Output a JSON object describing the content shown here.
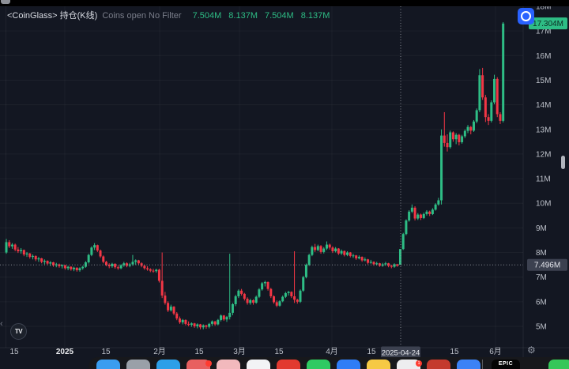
{
  "legend": {
    "symbol": "<CoinGlass> 持仓(K线)",
    "description": "Coins open No Filter",
    "ohlc": [
      "7.504M",
      "8.137M",
      "7.504M",
      "8.137M"
    ]
  },
  "tv_logo_text": "TV",
  "icons": {
    "collapse_chevron": "‹",
    "gear": "⚙"
  },
  "toolbar": {
    "refresh_color": "#2962ff"
  },
  "chart_data": {
    "type": "candlestick",
    "title": "<CoinGlass> 持仓(K线) Coins open No Filter",
    "unit": "M coins",
    "ylim": [
      4.6,
      18.3
    ],
    "up_color": "#2ebd85",
    "down_color": "#f23645",
    "grid": "faint",
    "y_ticks": [
      {
        "value": 18,
        "label": "18M"
      },
      {
        "value": 17,
        "label": "17M"
      },
      {
        "value": 16,
        "label": "16M"
      },
      {
        "value": 15,
        "label": "15M"
      },
      {
        "value": 14,
        "label": "14M"
      },
      {
        "value": 13,
        "label": "13M"
      },
      {
        "value": 12,
        "label": "12M"
      },
      {
        "value": 11,
        "label": "11M"
      },
      {
        "value": 10,
        "label": "10M"
      },
      {
        "value": 9,
        "label": "9M"
      },
      {
        "value": 8,
        "label": "8M"
      },
      {
        "value": 7,
        "label": "7M"
      },
      {
        "value": 6,
        "label": "6M"
      },
      {
        "value": 5,
        "label": "5M"
      }
    ],
    "x_ticks": [
      {
        "x": 18,
        "label": "15"
      },
      {
        "x": 82,
        "label": "2025",
        "bold": true,
        "grid": true
      },
      {
        "x": 134,
        "label": "15"
      },
      {
        "x": 202,
        "label": "2月",
        "grid": true
      },
      {
        "x": 252,
        "label": "15"
      },
      {
        "x": 303,
        "label": "3月",
        "grid": true
      },
      {
        "x": 353,
        "label": "15"
      },
      {
        "x": 420,
        "label": "4月",
        "grid": true
      },
      {
        "x": 470,
        "label": "15"
      },
      {
        "x": 575,
        "label": "15"
      },
      {
        "x": 627,
        "label": "6月",
        "grid": true
      }
    ],
    "last_price": {
      "value": 17.304,
      "label": "17.304M"
    },
    "crosshair": {
      "x": 507,
      "price": 7.496,
      "price_label": "7.496M",
      "date_label": "2025-04-24"
    },
    "candles": [
      [
        8.0,
        8.55,
        7.95,
        8.42
      ],
      [
        8.42,
        8.5,
        8.18,
        8.25
      ],
      [
        8.25,
        8.38,
        8.15,
        8.32
      ],
      [
        8.32,
        8.36,
        8.05,
        8.12
      ],
      [
        8.12,
        8.22,
        7.98,
        8.05
      ],
      [
        8.05,
        8.18,
        7.95,
        8.1
      ],
      [
        8.1,
        8.12,
        7.85,
        7.92
      ],
      [
        7.92,
        8.02,
        7.82,
        7.96
      ],
      [
        7.96,
        7.98,
        7.75,
        7.82
      ],
      [
        7.82,
        7.92,
        7.72,
        7.86
      ],
      [
        7.86,
        7.88,
        7.65,
        7.72
      ],
      [
        7.72,
        7.82,
        7.62,
        7.76
      ],
      [
        7.76,
        7.78,
        7.56,
        7.62
      ],
      [
        7.62,
        7.72,
        7.52,
        7.66
      ],
      [
        7.66,
        7.68,
        7.48,
        7.55
      ],
      [
        7.55,
        7.65,
        7.45,
        7.6
      ],
      [
        7.6,
        7.62,
        7.42,
        7.48
      ],
      [
        7.48,
        7.58,
        7.4,
        7.52
      ],
      [
        7.52,
        7.55,
        7.38,
        7.44
      ],
      [
        7.44,
        7.52,
        7.35,
        7.48
      ],
      [
        7.48,
        7.5,
        7.3,
        7.36
      ],
      [
        7.36,
        7.46,
        7.28,
        7.42
      ],
      [
        7.42,
        7.44,
        7.26,
        7.32
      ],
      [
        7.32,
        7.42,
        7.24,
        7.38
      ],
      [
        7.38,
        7.4,
        7.22,
        7.28
      ],
      [
        7.28,
        7.4,
        7.22,
        7.36
      ],
      [
        7.36,
        7.46,
        7.3,
        7.42
      ],
      [
        7.42,
        7.65,
        7.38,
        7.6
      ],
      [
        7.6,
        7.95,
        7.55,
        7.9
      ],
      [
        7.9,
        8.25,
        7.85,
        8.2
      ],
      [
        8.2,
        8.38,
        8.1,
        8.3
      ],
      [
        8.3,
        8.32,
        8.02,
        8.08
      ],
      [
        8.08,
        8.12,
        7.78,
        7.84
      ],
      [
        7.84,
        7.88,
        7.56,
        7.62
      ],
      [
        7.62,
        7.66,
        7.44,
        7.5
      ],
      [
        7.5,
        7.56,
        7.36,
        7.44
      ],
      [
        7.44,
        7.58,
        7.38,
        7.54
      ],
      [
        7.54,
        7.56,
        7.34,
        7.4
      ],
      [
        7.4,
        7.48,
        7.3,
        7.36
      ],
      [
        7.36,
        7.52,
        7.32,
        7.48
      ],
      [
        7.48,
        7.62,
        7.42,
        7.56
      ],
      [
        7.56,
        7.6,
        7.4,
        7.46
      ],
      [
        7.46,
        7.58,
        7.4,
        7.52
      ],
      [
        7.52,
        7.9,
        7.46,
        7.62
      ],
      [
        7.62,
        7.72,
        7.5,
        7.68
      ],
      [
        7.68,
        7.7,
        7.5,
        7.56
      ],
      [
        7.56,
        7.6,
        7.4,
        7.46
      ],
      [
        7.46,
        7.5,
        7.3,
        7.36
      ],
      [
        7.36,
        7.44,
        7.26,
        7.32
      ],
      [
        7.32,
        7.36,
        7.2,
        7.26
      ],
      [
        7.26,
        7.34,
        7.18,
        7.24
      ],
      [
        7.24,
        7.34,
        7.18,
        7.3
      ],
      [
        7.3,
        7.34,
        6.78,
        6.85
      ],
      [
        6.85,
        8.0,
        6.15,
        6.25
      ],
      [
        6.25,
        6.4,
        5.88,
        5.95
      ],
      [
        5.95,
        6.02,
        5.58,
        5.65
      ],
      [
        5.65,
        5.88,
        5.6,
        5.8
      ],
      [
        5.8,
        5.82,
        5.45,
        5.52
      ],
      [
        5.52,
        5.58,
        5.25,
        5.32
      ],
      [
        5.32,
        5.4,
        5.1,
        5.16
      ],
      [
        5.16,
        5.3,
        5.08,
        5.26
      ],
      [
        5.26,
        5.28,
        5.04,
        5.1
      ],
      [
        5.1,
        5.2,
        5.0,
        5.06
      ],
      [
        5.06,
        5.16,
        4.98,
        5.12
      ],
      [
        5.12,
        5.14,
        4.94,
        5.0
      ],
      [
        5.0,
        5.12,
        4.92,
        5.08
      ],
      [
        5.08,
        5.1,
        4.88,
        4.96
      ],
      [
        4.96,
        5.08,
        4.88,
        5.04
      ],
      [
        5.04,
        5.06,
        4.9,
        4.98
      ],
      [
        4.98,
        5.14,
        4.92,
        5.1
      ],
      [
        5.1,
        5.24,
        5.02,
        5.2
      ],
      [
        5.2,
        5.22,
        5.02,
        5.08
      ],
      [
        5.08,
        5.3,
        5.04,
        5.26
      ],
      [
        5.26,
        5.48,
        5.2,
        5.44
      ],
      [
        5.44,
        5.46,
        5.22,
        5.28
      ],
      [
        5.28,
        5.42,
        5.18,
        5.38
      ],
      [
        5.38,
        7.95,
        5.28,
        5.55
      ],
      [
        5.55,
        5.95,
        5.45,
        5.9
      ],
      [
        5.9,
        6.28,
        5.82,
        6.22
      ],
      [
        6.22,
        6.5,
        6.15,
        6.45
      ],
      [
        6.45,
        6.52,
        6.25,
        6.32
      ],
      [
        6.32,
        6.36,
        6.05,
        6.12
      ],
      [
        6.12,
        6.18,
        5.88,
        5.95
      ],
      [
        5.95,
        6.12,
        5.88,
        6.06
      ],
      [
        6.06,
        6.1,
        5.88,
        5.96
      ],
      [
        5.96,
        6.25,
        5.92,
        6.2
      ],
      [
        6.2,
        6.55,
        6.15,
        6.5
      ],
      [
        6.5,
        6.8,
        6.45,
        6.75
      ],
      [
        6.75,
        6.85,
        6.62,
        6.8
      ],
      [
        6.8,
        6.82,
        6.45,
        6.52
      ],
      [
        6.52,
        6.56,
        6.15,
        6.22
      ],
      [
        6.22,
        6.26,
        5.92,
        5.98
      ],
      [
        5.98,
        6.05,
        5.78,
        5.84
      ],
      [
        5.84,
        6.06,
        5.8,
        6.02
      ],
      [
        6.02,
        6.25,
        5.98,
        6.2
      ],
      [
        6.2,
        6.4,
        6.15,
        6.35
      ],
      [
        6.35,
        6.44,
        6.25,
        6.4
      ],
      [
        6.4,
        6.42,
        6.15,
        6.22
      ],
      [
        6.22,
        8.05,
        5.95,
        6.08
      ],
      [
        6.08,
        6.12,
        5.92,
        6.0
      ],
      [
        6.0,
        6.5,
        5.95,
        6.45
      ],
      [
        6.45,
        7.05,
        6.4,
        7.0
      ],
      [
        7.0,
        7.55,
        6.95,
        7.5
      ],
      [
        7.5,
        7.95,
        7.45,
        7.9
      ],
      [
        7.9,
        8.28,
        7.85,
        8.22
      ],
      [
        8.22,
        8.35,
        8.02,
        8.1
      ],
      [
        8.1,
        8.32,
        8.05,
        8.26
      ],
      [
        8.26,
        8.3,
        7.95,
        8.02
      ],
      [
        8.02,
        8.22,
        7.96,
        8.16
      ],
      [
        8.16,
        8.45,
        8.1,
        8.32
      ],
      [
        8.32,
        8.36,
        8.12,
        8.2
      ],
      [
        8.2,
        8.25,
        7.98,
        8.05
      ],
      [
        8.05,
        8.22,
        8.0,
        8.16
      ],
      [
        8.16,
        8.18,
        7.9,
        7.96
      ],
      [
        7.96,
        8.12,
        7.9,
        8.06
      ],
      [
        8.06,
        8.08,
        7.84,
        7.9
      ],
      [
        7.9,
        8.05,
        7.85,
        8.0
      ],
      [
        8.0,
        8.02,
        7.8,
        7.86
      ],
      [
        7.86,
        7.95,
        7.78,
        7.88
      ],
      [
        7.88,
        7.9,
        7.7,
        7.76
      ],
      [
        7.76,
        7.88,
        7.72,
        7.82
      ],
      [
        7.82,
        7.84,
        7.62,
        7.68
      ],
      [
        7.68,
        7.8,
        7.64,
        7.72
      ],
      [
        7.72,
        7.74,
        7.52,
        7.58
      ],
      [
        7.58,
        7.7,
        7.54,
        7.62
      ],
      [
        7.62,
        7.64,
        7.46,
        7.52
      ],
      [
        7.52,
        7.62,
        7.48,
        7.56
      ],
      [
        7.56,
        7.58,
        7.42,
        7.46
      ],
      [
        7.46,
        7.58,
        7.42,
        7.52
      ],
      [
        7.52,
        7.62,
        7.46,
        7.56
      ],
      [
        7.56,
        7.58,
        7.4,
        7.46
      ],
      [
        7.46,
        7.5,
        7.36,
        7.42
      ],
      [
        7.42,
        7.56,
        7.38,
        7.52
      ],
      [
        7.52,
        7.54,
        7.42,
        7.46
      ],
      [
        7.5,
        8.14,
        7.5,
        8.14
      ],
      [
        8.14,
        8.8,
        8.1,
        8.75
      ],
      [
        8.75,
        9.35,
        8.7,
        9.3
      ],
      [
        9.3,
        9.72,
        9.25,
        9.66
      ],
      [
        9.66,
        9.95,
        9.6,
        9.82
      ],
      [
        9.82,
        9.88,
        9.3,
        9.38
      ],
      [
        9.38,
        9.6,
        9.32,
        9.54
      ],
      [
        9.54,
        9.58,
        9.32,
        9.4
      ],
      [
        9.4,
        9.62,
        9.36,
        9.56
      ],
      [
        9.56,
        9.72,
        9.5,
        9.66
      ],
      [
        9.66,
        9.7,
        9.48,
        9.56
      ],
      [
        9.56,
        9.8,
        9.52,
        9.74
      ],
      [
        9.74,
        10.0,
        9.7,
        9.95
      ],
      [
        9.95,
        10.22,
        9.9,
        10.12
      ],
      [
        10.12,
        13.0,
        9.95,
        12.75
      ],
      [
        12.75,
        13.7,
        12.3,
        12.45
      ],
      [
        12.45,
        12.8,
        12.1,
        12.28
      ],
      [
        12.28,
        12.95,
        12.22,
        12.88
      ],
      [
        12.88,
        12.92,
        12.5,
        12.6
      ],
      [
        12.6,
        12.85,
        12.4,
        12.78
      ],
      [
        12.78,
        12.82,
        12.35,
        12.48
      ],
      [
        12.48,
        12.78,
        12.42,
        12.72
      ],
      [
        12.72,
        13.0,
        12.65,
        12.94
      ],
      [
        12.94,
        13.18,
        12.85,
        13.1
      ],
      [
        13.1,
        13.14,
        12.8,
        12.95
      ],
      [
        12.95,
        13.38,
        12.9,
        13.32
      ],
      [
        13.32,
        13.85,
        13.25,
        13.78
      ],
      [
        13.78,
        15.45,
        13.7,
        15.2
      ],
      [
        15.2,
        15.5,
        14.2,
        14.3
      ],
      [
        14.3,
        14.4,
        13.3,
        13.5
      ],
      [
        13.5,
        13.62,
        13.18,
        13.35
      ],
      [
        13.35,
        14.18,
        13.28,
        14.1
      ],
      [
        14.1,
        15.22,
        14.02,
        15.05
      ],
      [
        15.05,
        15.12,
        13.5,
        13.62
      ],
      [
        13.62,
        13.7,
        13.22,
        13.35
      ],
      [
        13.35,
        17.36,
        13.28,
        17.3
      ]
    ]
  },
  "dock": {
    "epic_label": "EPIC",
    "icons": [
      {
        "name": "dock-app-blue-1",
        "color": "#3a9df0"
      },
      {
        "name": "dock-app-gray",
        "color": "#9aa0a8"
      },
      {
        "name": "dock-app-cyan",
        "color": "#2d9fe8"
      },
      {
        "name": "dock-app-pink-badged",
        "color": "#e86060",
        "badge": ""
      },
      {
        "name": "dock-app-salmon",
        "color": "#f2b9bd"
      },
      {
        "name": "dock-app-white",
        "color": "#f2f3f5"
      },
      {
        "name": "dock-app-red",
        "color": "#e23a30"
      },
      {
        "name": "dock-app-green",
        "color": "#2fca62"
      },
      {
        "name": "dock-app-blue-2",
        "color": "#2f7df6"
      },
      {
        "name": "dock-app-yellow",
        "color": "#f6c944"
      },
      {
        "name": "dock-app-notes-badged",
        "color": "#ededef",
        "badge": "1"
      },
      {
        "name": "dock-app-darkred",
        "color": "#c43a2e"
      },
      {
        "name": "dock-app-blue-3",
        "color": "#3b82f6"
      }
    ],
    "right_icon_color": "#35c759"
  }
}
